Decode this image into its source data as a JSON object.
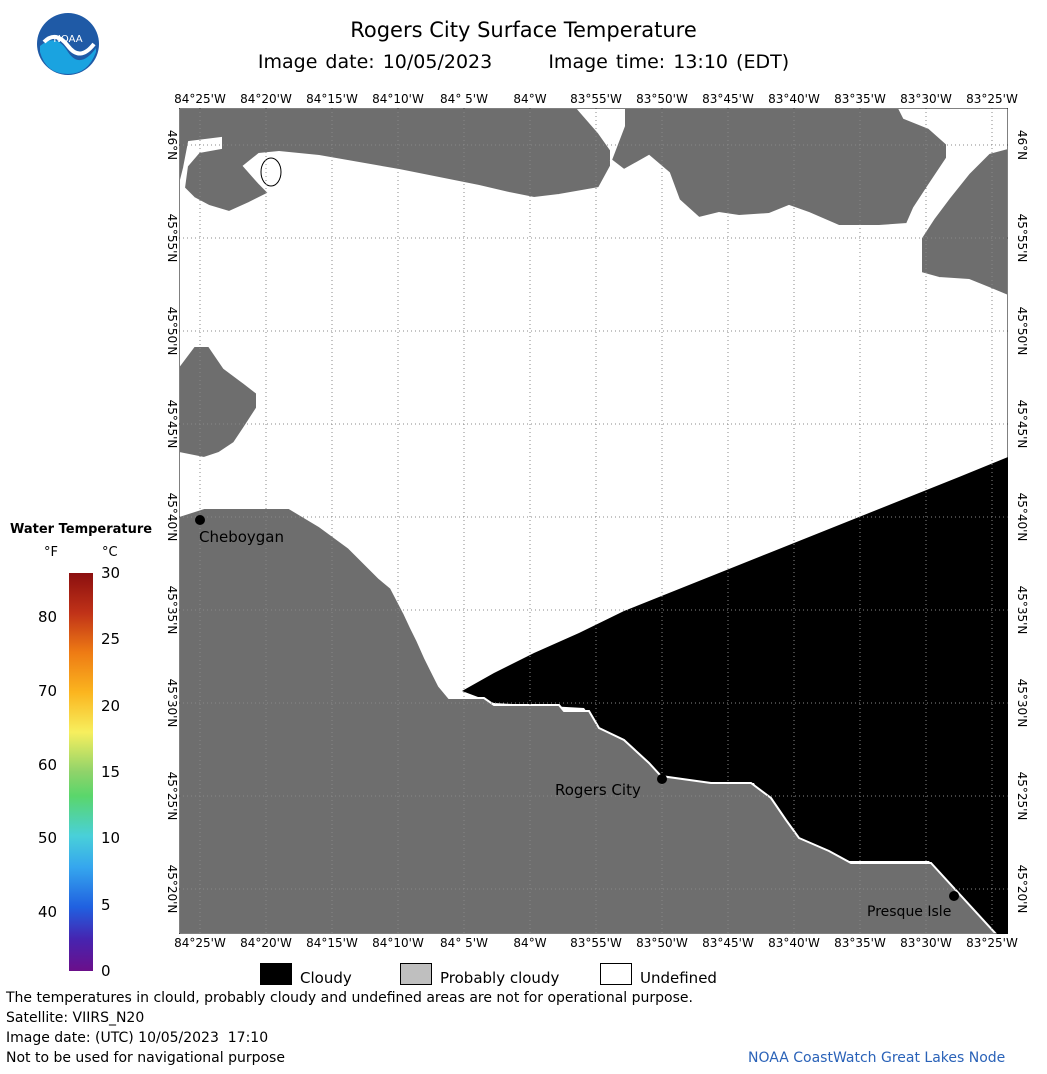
{
  "header": {
    "title": "Rogers City Surface Temperature",
    "image_date": "Image date: 10/05/2023",
    "image_time": "Image time: 13:10 (EDT)"
  },
  "map": {
    "lon_ticks": [
      "84°25'W",
      "84°20'W",
      "84°15'W",
      "84°10'W",
      "84° 5'W",
      "84°W",
      "83°55'W",
      "83°50'W",
      "83°45'W",
      "83°40'W",
      "83°35'W",
      "83°30'W",
      "83°25'W"
    ],
    "lat_ticks": [
      "46°N",
      "45°55'N",
      "45°50'N",
      "45°45'N",
      "45°40'N",
      "45°35'N",
      "45°30'N",
      "45°25'N",
      "45°20'N"
    ],
    "cities": [
      {
        "name": "Cheboygan"
      },
      {
        "name": "Rogers City"
      },
      {
        "name": "Presque Isle"
      }
    ],
    "colors": {
      "land": "#6e6e6e",
      "cloudy": "#000000",
      "undefined": "#ffffff",
      "probably_cloudy": "#bfbfbf"
    }
  },
  "colorbar": {
    "title": "Water Temperature",
    "unit_f": "°F",
    "unit_c": "°C",
    "f_ticks": [
      "80",
      "70",
      "60",
      "50",
      "40"
    ],
    "c_ticks": [
      "30",
      "25",
      "20",
      "15",
      "10",
      "5",
      "0"
    ]
  },
  "legend": {
    "cloudy": "Cloudy",
    "probably_cloudy": "Probably cloudy",
    "undefined": "Undefined"
  },
  "footer": {
    "disclaimer": "The temperatures in clould, probably cloudy and undefined areas are not for operational purpose.",
    "satellite": "Satellite: VIIRS_N20",
    "utc_date": "Image date: (UTC) 10/05/2023  17:10",
    "nav_warning": "Not to be used for navigational purpose",
    "credit": "NOAA CoastWatch Great Lakes Node"
  }
}
